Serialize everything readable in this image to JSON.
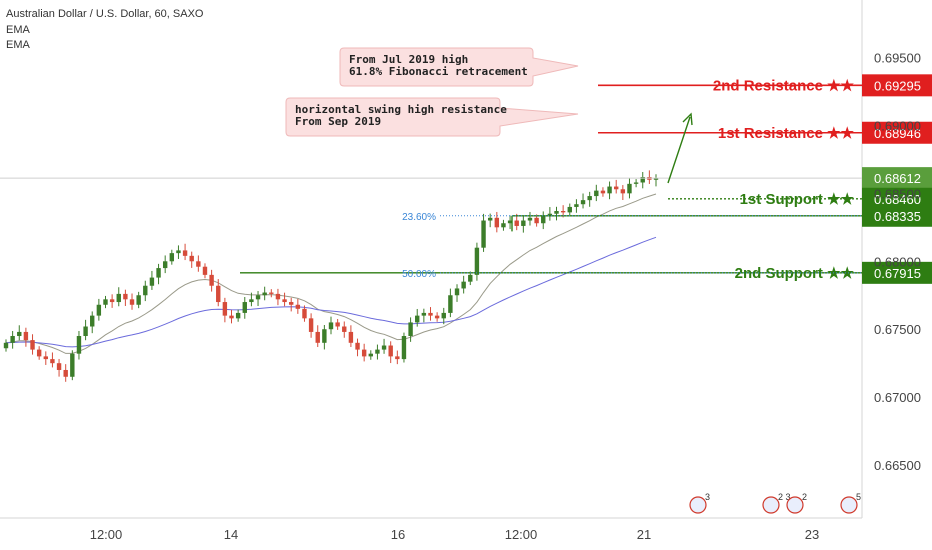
{
  "header": {
    "symbol": "Australian Dollar / U.S. Dollar, 60, SAXO",
    "indicators": [
      "EMA",
      "EMA"
    ]
  },
  "colors": {
    "resistance": "#e01f1f",
    "support": "#2e7d12",
    "bull_candle": "#3c7d2a",
    "bear_candle": "#d64b3a",
    "ema_fast": "#9a9a8a",
    "ema_slow": "#6b6bdc",
    "fib": "#3a86d6",
    "axis_text": "#444444"
  },
  "chart_data": {
    "type": "candlestick",
    "symbol": "AUDUSD",
    "timeframe": "60",
    "ylim": [
      0.6614,
      0.6982
    ],
    "y_ticks": [
      "0.69500",
      "0.69000",
      "0.68500",
      "0.68000",
      "0.67500",
      "0.67000",
      "0.66500"
    ],
    "x_ticks": [
      "12:00",
      "14",
      "16",
      "12:00",
      "21",
      "23"
    ],
    "last_price": "0.68612",
    "ohlc_close_path": [
      0.674,
      0.6745,
      0.6748,
      0.6742,
      0.6735,
      0.673,
      0.6728,
      0.6725,
      0.672,
      0.6715,
      0.6732,
      0.6745,
      0.6752,
      0.676,
      0.6768,
      0.6772,
      0.677,
      0.6776,
      0.6772,
      0.6768,
      0.6775,
      0.6782,
      0.6788,
      0.6795,
      0.68,
      0.6806,
      0.6808,
      0.6804,
      0.68,
      0.6796,
      0.679,
      0.6782,
      0.677,
      0.676,
      0.6758,
      0.6762,
      0.677,
      0.6772,
      0.6775,
      0.6777,
      0.6776,
      0.6772,
      0.677,
      0.6768,
      0.6765,
      0.6758,
      0.6748,
      0.674,
      0.675,
      0.6755,
      0.6752,
      0.6748,
      0.674,
      0.6735,
      0.673,
      0.6732,
      0.6735,
      0.6738,
      0.673,
      0.6728,
      0.6745,
      0.6755,
      0.676,
      0.6762,
      0.676,
      0.6758,
      0.6762,
      0.6775,
      0.678,
      0.6785,
      0.679,
      0.681,
      0.683,
      0.6832,
      0.6825,
      0.6828,
      0.683,
      0.6826,
      0.683,
      0.6832,
      0.6828,
      0.6833,
      0.6835,
      0.6837,
      0.6836,
      0.684,
      0.6842,
      0.6845,
      0.6848,
      0.6852,
      0.685,
      0.6855,
      0.6853,
      0.685,
      0.6857,
      0.6858,
      0.6862,
      0.686,
      0.6861
    ],
    "levels": [
      {
        "label": "2nd Resistance ★★",
        "price": "0.69295",
        "kind": "resistance"
      },
      {
        "label": "1st Resistance ★★",
        "price": "0.68946",
        "kind": "resistance"
      },
      {
        "label": "1st Support ★★",
        "price": "0.68460",
        "kind": "support"
      },
      {
        "label": "",
        "price": "0.68335",
        "kind": "support"
      },
      {
        "label": "2nd Support ★★",
        "price": "0.67915",
        "kind": "support"
      }
    ],
    "fib_levels": [
      {
        "label": "23.60%",
        "price": 0.68335
      },
      {
        "label": "50.00%",
        "price": 0.67915
      }
    ],
    "annotations": [
      {
        "lines": [
          "From Jul 2019 high",
          "61.8% Fibonacci retracement"
        ]
      },
      {
        "lines": [
          "horizontal swing high resistance",
          "From Sep 2019"
        ]
      }
    ],
    "event_badges": [
      "3",
      "2 3",
      "2",
      "5"
    ]
  }
}
